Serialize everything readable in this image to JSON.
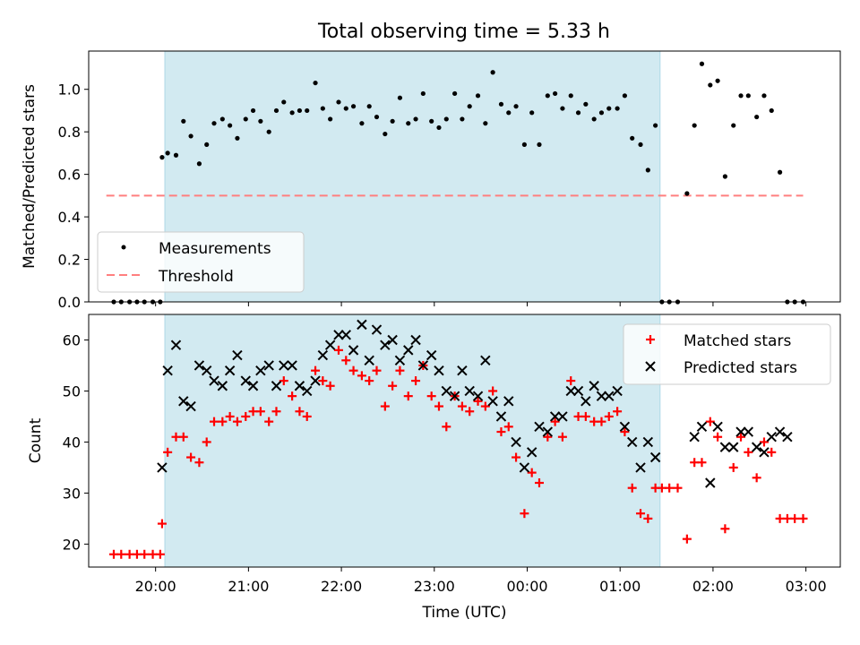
{
  "title": "Total observing time = 5.33 h",
  "chart_data": [
    {
      "type": "scatter",
      "ylabel": "Matched/Predicted stars",
      "ylim": [
        0,
        1.18
      ],
      "y_ticks": [
        "0.0",
        "0.2",
        "0.4",
        "0.6",
        "0.8",
        "1.0"
      ],
      "highlight": {
        "x_start": 20.1,
        "x_end": 25.43,
        "color": "#add8e6"
      },
      "legend": {
        "placement": "lower-left",
        "entries": [
          "Measurements",
          "Threshold"
        ]
      },
      "series": [
        {
          "name": "Measurements",
          "color": "#000000",
          "points": [
            [
              19.55,
              0
            ],
            [
              19.63,
              0
            ],
            [
              19.72,
              0
            ],
            [
              19.8,
              0
            ],
            [
              19.88,
              0
            ],
            [
              19.97,
              0
            ],
            [
              20.05,
              0
            ],
            [
              20.07,
              0.68
            ],
            [
              20.13,
              0.7
            ],
            [
              20.22,
              0.69
            ],
            [
              20.3,
              0.85
            ],
            [
              20.38,
              0.78
            ],
            [
              20.47,
              0.65
            ],
            [
              20.55,
              0.74
            ],
            [
              20.63,
              0.84
            ],
            [
              20.72,
              0.86
            ],
            [
              20.8,
              0.83
            ],
            [
              20.88,
              0.77
            ],
            [
              20.97,
              0.86
            ],
            [
              21.05,
              0.9
            ],
            [
              21.13,
              0.85
            ],
            [
              21.22,
              0.8
            ],
            [
              21.3,
              0.9
            ],
            [
              21.38,
              0.94
            ],
            [
              21.47,
              0.89
            ],
            [
              21.55,
              0.9
            ],
            [
              21.63,
              0.9
            ],
            [
              21.72,
              1.03
            ],
            [
              21.8,
              0.91
            ],
            [
              21.88,
              0.86
            ],
            [
              21.97,
              0.94
            ],
            [
              22.05,
              0.91
            ],
            [
              22.13,
              0.92
            ],
            [
              22.22,
              0.84
            ],
            [
              22.3,
              0.92
            ],
            [
              22.38,
              0.87
            ],
            [
              22.47,
              0.79
            ],
            [
              22.55,
              0.85
            ],
            [
              22.63,
              0.96
            ],
            [
              22.72,
              0.84
            ],
            [
              22.8,
              0.86
            ],
            [
              22.88,
              0.98
            ],
            [
              22.97,
              0.85
            ],
            [
              23.05,
              0.82
            ],
            [
              23.13,
              0.86
            ],
            [
              23.22,
              0.98
            ],
            [
              23.3,
              0.86
            ],
            [
              23.38,
              0.92
            ],
            [
              23.47,
              0.97
            ],
            [
              23.55,
              0.84
            ],
            [
              23.63,
              1.08
            ],
            [
              23.72,
              0.93
            ],
            [
              23.8,
              0.89
            ],
            [
              23.88,
              0.92
            ],
            [
              23.97,
              0.74
            ],
            [
              24.05,
              0.89
            ],
            [
              24.13,
              0.74
            ],
            [
              24.22,
              0.97
            ],
            [
              24.3,
              0.98
            ],
            [
              24.38,
              0.91
            ],
            [
              24.47,
              0.97
            ],
            [
              24.55,
              0.89
            ],
            [
              24.63,
              0.93
            ],
            [
              24.72,
              0.86
            ],
            [
              24.8,
              0.89
            ],
            [
              24.88,
              0.91
            ],
            [
              24.97,
              0.91
            ],
            [
              25.05,
              0.97
            ],
            [
              25.13,
              0.77
            ],
            [
              25.22,
              0.74
            ],
            [
              25.3,
              0.62
            ],
            [
              25.38,
              0.83
            ],
            [
              25.45,
              0
            ],
            [
              25.53,
              0
            ],
            [
              25.62,
              0
            ],
            [
              25.72,
              0.51
            ],
            [
              25.8,
              0.83
            ],
            [
              25.88,
              1.12
            ],
            [
              25.97,
              1.02
            ],
            [
              26.05,
              1.04
            ],
            [
              26.13,
              0.59
            ],
            [
              26.22,
              0.83
            ],
            [
              26.3,
              0.97
            ],
            [
              26.38,
              0.97
            ],
            [
              26.47,
              0.87
            ],
            [
              26.55,
              0.97
            ],
            [
              26.63,
              0.9
            ],
            [
              26.72,
              0.61
            ],
            [
              26.8,
              0
            ],
            [
              26.88,
              0
            ],
            [
              26.97,
              0
            ]
          ]
        },
        {
          "name": "Threshold",
          "color": "#ff7f7f",
          "x": [
            19.47,
            26.97
          ],
          "y": [
            0.5,
            0.5
          ]
        }
      ]
    },
    {
      "type": "scatter",
      "xlabel": "Time (UTC)",
      "ylabel": "Count",
      "xlim": [
        19.28,
        27.37
      ],
      "ylim": [
        15.5,
        65
      ],
      "x_ticks": [
        {
          "x": 20,
          "label": "20:00"
        },
        {
          "x": 21,
          "label": "21:00"
        },
        {
          "x": 22,
          "label": "22:00"
        },
        {
          "x": 23,
          "label": "23:00"
        },
        {
          "x": 24,
          "label": "00:00"
        },
        {
          "x": 25,
          "label": "01:00"
        },
        {
          "x": 26,
          "label": "02:00"
        },
        {
          "x": 27,
          "label": "03:00"
        }
      ],
      "y_ticks": [
        "20",
        "30",
        "40",
        "50",
        "60"
      ],
      "highlight": {
        "x_start": 20.1,
        "x_end": 25.43,
        "color": "#add8e6"
      },
      "legend": {
        "placement": "top-right",
        "entries": [
          "Matched stars",
          "Predicted stars"
        ]
      },
      "series": [
        {
          "name": "Matched stars",
          "marker": "plus",
          "color": "#ff0000",
          "points": [
            [
              19.55,
              18
            ],
            [
              19.63,
              18
            ],
            [
              19.72,
              18
            ],
            [
              19.8,
              18
            ],
            [
              19.88,
              18
            ],
            [
              19.97,
              18
            ],
            [
              20.05,
              18
            ],
            [
              20.07,
              24
            ],
            [
              20.13,
              38
            ],
            [
              20.22,
              41
            ],
            [
              20.3,
              41
            ],
            [
              20.38,
              37
            ],
            [
              20.47,
              36
            ],
            [
              20.55,
              40
            ],
            [
              20.63,
              44
            ],
            [
              20.72,
              44
            ],
            [
              20.8,
              45
            ],
            [
              20.88,
              44
            ],
            [
              20.97,
              45
            ],
            [
              21.05,
              46
            ],
            [
              21.13,
              46
            ],
            [
              21.22,
              44
            ],
            [
              21.3,
              46
            ],
            [
              21.38,
              52
            ],
            [
              21.47,
              49
            ],
            [
              21.55,
              46
            ],
            [
              21.63,
              45
            ],
            [
              21.72,
              54
            ],
            [
              21.8,
              52
            ],
            [
              21.88,
              51
            ],
            [
              21.97,
              58
            ],
            [
              22.05,
              56
            ],
            [
              22.13,
              54
            ],
            [
              22.22,
              53
            ],
            [
              22.3,
              52
            ],
            [
              22.38,
              54
            ],
            [
              22.47,
              47
            ],
            [
              22.55,
              51
            ],
            [
              22.63,
              54
            ],
            [
              22.72,
              49
            ],
            [
              22.8,
              52
            ],
            [
              22.88,
              55
            ],
            [
              22.97,
              49
            ],
            [
              23.05,
              47
            ],
            [
              23.13,
              43
            ],
            [
              23.22,
              49
            ],
            [
              23.3,
              47
            ],
            [
              23.38,
              46
            ],
            [
              23.47,
              48
            ],
            [
              23.55,
              47
            ],
            [
              23.63,
              50
            ],
            [
              23.72,
              42
            ],
            [
              23.8,
              43
            ],
            [
              23.88,
              37
            ],
            [
              23.97,
              26
            ],
            [
              24.05,
              34
            ],
            [
              24.13,
              32
            ],
            [
              24.22,
              41
            ],
            [
              24.3,
              44
            ],
            [
              24.38,
              41
            ],
            [
              24.47,
              52
            ],
            [
              24.55,
              45
            ],
            [
              24.63,
              45
            ],
            [
              24.72,
              44
            ],
            [
              24.8,
              44
            ],
            [
              24.88,
              45
            ],
            [
              24.97,
              46
            ],
            [
              25.05,
              42
            ],
            [
              25.13,
              31
            ],
            [
              25.22,
              26
            ],
            [
              25.3,
              25
            ],
            [
              25.38,
              31
            ],
            [
              25.45,
              31
            ],
            [
              25.53,
              31
            ],
            [
              25.62,
              31
            ],
            [
              25.72,
              21
            ],
            [
              25.8,
              36
            ],
            [
              25.88,
              36
            ],
            [
              25.97,
              44
            ],
            [
              26.05,
              41
            ],
            [
              26.13,
              23
            ],
            [
              26.22,
              35
            ],
            [
              26.3,
              41
            ],
            [
              26.38,
              38
            ],
            [
              26.47,
              33
            ],
            [
              26.55,
              40
            ],
            [
              26.63,
              38
            ],
            [
              26.72,
              25
            ],
            [
              26.8,
              25
            ],
            [
              26.88,
              25
            ],
            [
              26.97,
              25
            ]
          ]
        },
        {
          "name": "Predicted stars",
          "marker": "x",
          "color": "#000000",
          "points": [
            [
              20.07,
              35
            ],
            [
              20.13,
              54
            ],
            [
              20.22,
              59
            ],
            [
              20.3,
              48
            ],
            [
              20.38,
              47
            ],
            [
              20.47,
              55
            ],
            [
              20.55,
              54
            ],
            [
              20.63,
              52
            ],
            [
              20.72,
              51
            ],
            [
              20.8,
              54
            ],
            [
              20.88,
              57
            ],
            [
              20.97,
              52
            ],
            [
              21.05,
              51
            ],
            [
              21.13,
              54
            ],
            [
              21.22,
              55
            ],
            [
              21.3,
              51
            ],
            [
              21.38,
              55
            ],
            [
              21.47,
              55
            ],
            [
              21.55,
              51
            ],
            [
              21.63,
              50
            ],
            [
              21.72,
              52
            ],
            [
              21.8,
              57
            ],
            [
              21.88,
              59
            ],
            [
              21.97,
              61
            ],
            [
              22.05,
              61
            ],
            [
              22.13,
              58
            ],
            [
              22.22,
              63
            ],
            [
              22.3,
              56
            ],
            [
              22.38,
              62
            ],
            [
              22.47,
              59
            ],
            [
              22.55,
              60
            ],
            [
              22.63,
              56
            ],
            [
              22.72,
              58
            ],
            [
              22.8,
              60
            ],
            [
              22.88,
              55
            ],
            [
              22.97,
              57
            ],
            [
              23.05,
              54
            ],
            [
              23.13,
              50
            ],
            [
              23.22,
              49
            ],
            [
              23.3,
              54
            ],
            [
              23.38,
              50
            ],
            [
              23.47,
              49
            ],
            [
              23.55,
              56
            ],
            [
              23.63,
              48
            ],
            [
              23.72,
              45
            ],
            [
              23.8,
              48
            ],
            [
              23.88,
              40
            ],
            [
              23.97,
              35
            ],
            [
              24.05,
              38
            ],
            [
              24.13,
              43
            ],
            [
              24.22,
              42
            ],
            [
              24.3,
              45
            ],
            [
              24.38,
              45
            ],
            [
              24.47,
              50
            ],
            [
              24.55,
              50
            ],
            [
              24.63,
              48
            ],
            [
              24.72,
              51
            ],
            [
              24.8,
              49
            ],
            [
              24.88,
              49
            ],
            [
              24.97,
              50
            ],
            [
              25.05,
              43
            ],
            [
              25.13,
              40
            ],
            [
              25.22,
              35
            ],
            [
              25.3,
              40
            ],
            [
              25.38,
              37
            ],
            [
              25.8,
              41
            ],
            [
              25.88,
              43
            ],
            [
              25.97,
              32
            ],
            [
              26.05,
              43
            ],
            [
              26.13,
              39
            ],
            [
              26.22,
              39
            ],
            [
              26.3,
              42
            ],
            [
              26.38,
              42
            ],
            [
              26.47,
              39
            ],
            [
              26.55,
              38
            ],
            [
              26.63,
              41
            ],
            [
              26.72,
              42
            ],
            [
              26.8,
              41
            ]
          ]
        }
      ]
    }
  ]
}
